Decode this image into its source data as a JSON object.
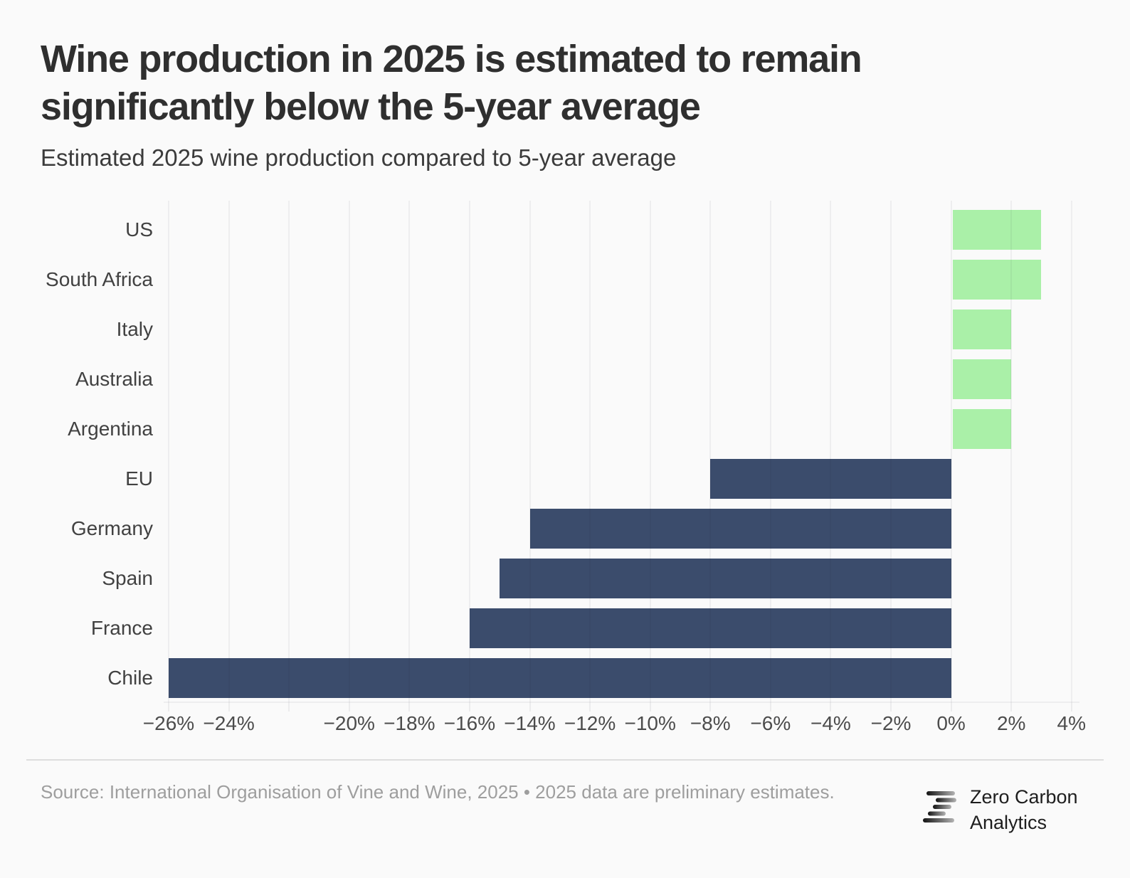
{
  "header": {
    "title": "Wine production in 2025 is estimated to remain significantly below the 5-year average",
    "subtitle": "Estimated 2025 wine production compared to 5-year average"
  },
  "chart_data": {
    "type": "bar",
    "orientation": "horizontal",
    "categories": [
      "US",
      "South Africa",
      "Italy",
      "Australia",
      "Argentina",
      "EU",
      "Germany",
      "Spain",
      "France",
      "Chile"
    ],
    "values": [
      3,
      3,
      2,
      2,
      2,
      -8,
      -14,
      -15,
      -16,
      -26
    ],
    "unit": "%",
    "xlim": [
      -26,
      4.1
    ],
    "xticks": [
      -26,
      -24,
      -22,
      -20,
      -18,
      -16,
      -14,
      -12,
      -10,
      -8,
      -6,
      -4,
      -2,
      0,
      2,
      4
    ],
    "xtick_labels": [
      "−26%",
      "−24%",
      "",
      "−20%",
      "−18%",
      "−16%",
      "−14%",
      "−12%",
      "−10%",
      "−8%",
      "−6%",
      "−4%",
      "−2%",
      "0%",
      "2%",
      "4%"
    ],
    "grid": true,
    "legend": "none",
    "positive_color": "#aaf0a8",
    "negative_color": "#3b4c6c",
    "background_color": "#fafafa"
  },
  "footer": {
    "source": "Source: International Organisation of Vine and Wine, 2025 • 2025 data are preliminary estimates.",
    "logo_line1": "Zero Carbon",
    "logo_line2": "Analytics"
  }
}
